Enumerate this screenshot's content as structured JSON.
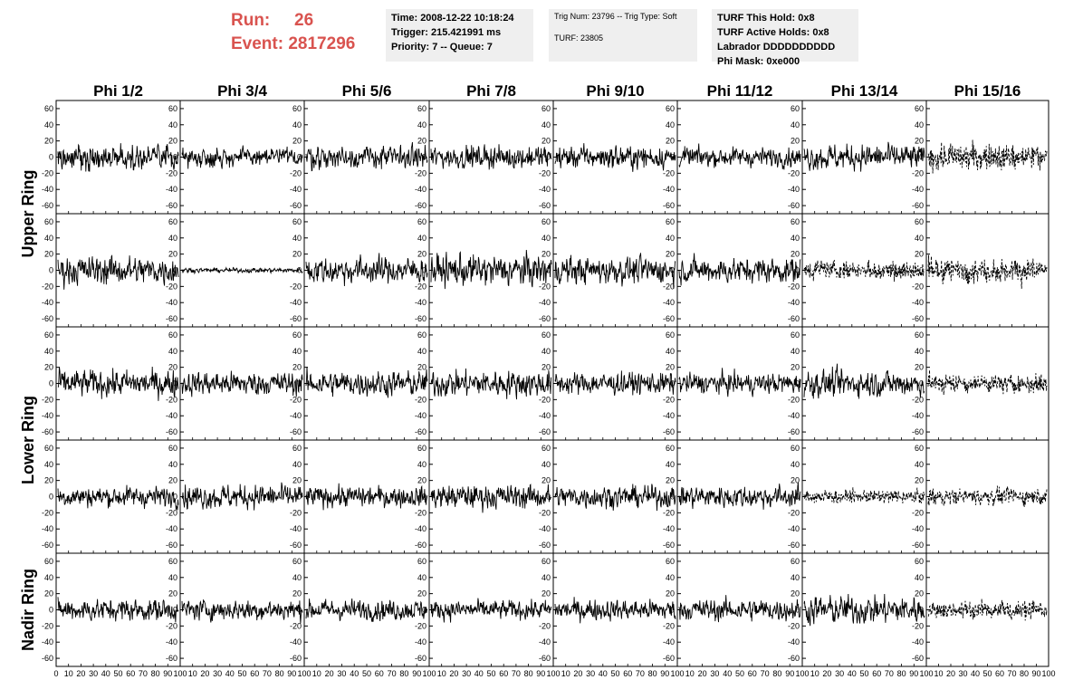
{
  "header": {
    "run_label": "Run:",
    "run_value": "26",
    "event_label": "Event:",
    "event_value": "2817296",
    "run_color": "#d9534f",
    "time": "Time: 2008-12-22 10:18:24",
    "trigger": "Trigger: 215.421991 ms",
    "priority": "Priority: 7 -- Queue: 7",
    "trig_info": "Trig Num: 23796 -- Trig Type: Soft",
    "turf": "TURF: 23805",
    "turf_this_hold": "TURF This Hold: 0x8",
    "turf_active_holds": "TURF Active Holds: 0x8",
    "labrador": "Labrador DDDDDDDDDD",
    "phi_mask": "Phi Mask: 0xe000"
  },
  "chart_data": {
    "type": "line",
    "columns": [
      "Phi 1/2",
      "Phi 3/4",
      "Phi 5/6",
      "Phi 7/8",
      "Phi 9/10",
      "Phi 11/12",
      "Phi 13/14",
      "Phi 15/16"
    ],
    "row_groups": [
      {
        "label": "Upper Ring",
        "rows": 2
      },
      {
        "label": "Lower Ring",
        "rows": 2
      },
      {
        "label": "Nadir Ring",
        "rows": 1
      }
    ],
    "ylim": [
      -70,
      70
    ],
    "y_ticks": [
      -60,
      -40,
      -20,
      0,
      20,
      40,
      60
    ],
    "xlim": [
      0,
      100
    ],
    "x_tick_labels": [
      "0",
      "10",
      "20",
      "30",
      "40",
      "50",
      "60",
      "70",
      "80",
      "90",
      "100"
    ],
    "samples": 260,
    "amplitudes": [
      [
        15,
        12,
        14,
        14,
        14,
        12,
        16,
        25
      ],
      [
        18,
        3,
        17,
        20,
        17,
        16,
        17,
        22
      ],
      [
        17,
        15,
        16,
        17,
        14,
        13,
        17,
        18
      ],
      [
        13,
        15,
        13,
        15,
        14,
        14,
        12,
        15
      ],
      [
        14,
        13,
        13,
        12,
        13,
        14,
        18,
        17
      ]
    ],
    "dashed_panels": [
      [
        0,
        7
      ],
      [
        1,
        6
      ],
      [
        1,
        7
      ],
      [
        2,
        7
      ],
      [
        3,
        6
      ],
      [
        3,
        7
      ],
      [
        4,
        7
      ]
    ]
  }
}
